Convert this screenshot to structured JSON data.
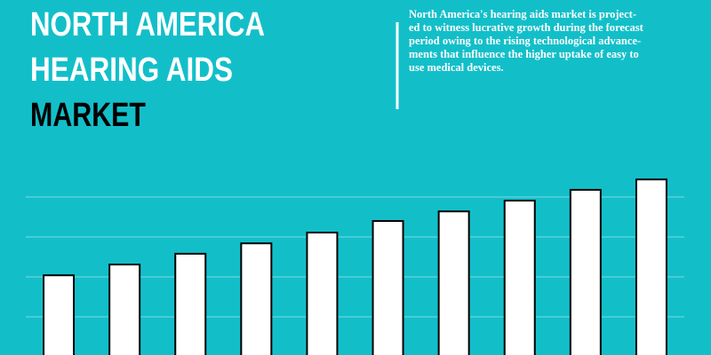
{
  "chart_data": {
    "type": "bar",
    "title_lines": [
      "NORTH AMERICA",
      "HEARING AIDS",
      "MARKET"
    ],
    "description_lines": [
      "North America's hearing aids market is project-",
      "ed to witness lucrative growth during the forecast",
      "period owing to the rising technological advance-",
      "ments that influence the higher uptake of easy to",
      "use medical devices."
    ],
    "categories": [
      null,
      null,
      null,
      null,
      null,
      null,
      null,
      null,
      null,
      null
    ],
    "values": [
      2.04,
      2.31,
      2.58,
      2.84,
      3.11,
      3.4,
      3.64,
      3.91,
      4.18,
      4.44
    ],
    "color": "#ffffff",
    "ylim": [
      0,
      5
    ],
    "yticks": [
      1,
      2,
      3,
      4
    ],
    "grid": true
  }
}
